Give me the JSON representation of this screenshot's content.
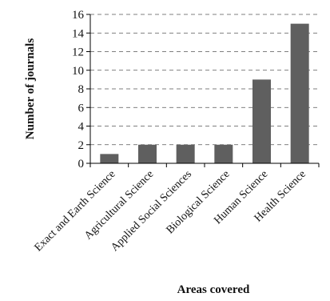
{
  "chart_data": {
    "type": "bar",
    "categories": [
      "Exact and Earth Science",
      "Agricultural Science",
      "Applied Social Sciences",
      "Biological Science",
      "Human Science",
      "Health Science"
    ],
    "values": [
      1,
      2,
      2,
      2,
      9,
      15
    ],
    "title": "",
    "xlabel": "Areas covered",
    "ylabel": "Number of journals",
    "ylim": [
      0,
      16
    ],
    "yticks": [
      0,
      2,
      4,
      6,
      8,
      10,
      12,
      14,
      16
    ],
    "grid": true,
    "legend": "none",
    "bar_color": "#5f5f5f"
  }
}
